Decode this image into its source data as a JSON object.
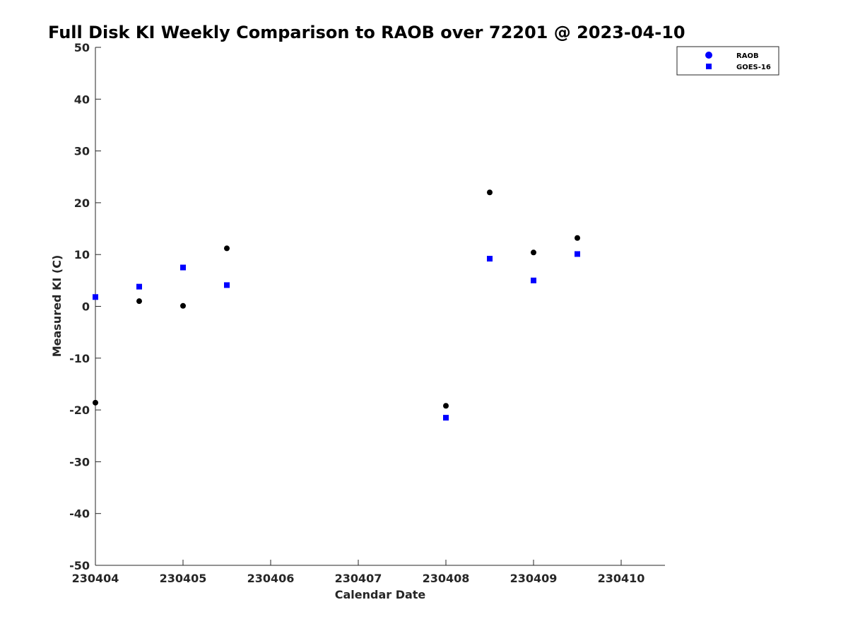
{
  "chart_data": {
    "type": "scatter",
    "title": "Full Disk KI Weekly Comparison to RAOB over 72201 @ 2023-04-10",
    "xlabel": "Calendar Date",
    "ylabel": "Measured KI (C)",
    "xlim": [
      "2023-04-04",
      "2023-04-10 12:00"
    ],
    "ylim": [
      -50,
      50
    ],
    "x_ticks": [
      {
        "value": "2023-04-04",
        "label": "230404"
      },
      {
        "value": "2023-04-05",
        "label": "230405"
      },
      {
        "value": "2023-04-06",
        "label": "230406"
      },
      {
        "value": "2023-04-07",
        "label": "230407"
      },
      {
        "value": "2023-04-08",
        "label": "230408"
      },
      {
        "value": "2023-04-09",
        "label": "230409"
      },
      {
        "value": "2023-04-10",
        "label": "230410"
      }
    ],
    "y_ticks": [
      {
        "value": 50,
        "label": "50"
      },
      {
        "value": 40,
        "label": "40"
      },
      {
        "value": 30,
        "label": "30"
      },
      {
        "value": 20,
        "label": "20"
      },
      {
        "value": 10,
        "label": "10"
      },
      {
        "value": 0,
        "label": "0"
      },
      {
        "value": -10,
        "label": "-10"
      },
      {
        "value": -20,
        "label": "-20"
      },
      {
        "value": -30,
        "label": "-30"
      },
      {
        "value": -40,
        "label": "-40"
      },
      {
        "value": -50,
        "label": "-50"
      }
    ],
    "grid": false,
    "legend_position": "top-right",
    "series": [
      {
        "name": "RAOB",
        "marker": "circle",
        "color": "#000000",
        "legend_color": "#0000ff",
        "points": [
          {
            "x": "2023-04-04 00:00",
            "y": -18.6
          },
          {
            "x": "2023-04-04 12:00",
            "y": 1.0
          },
          {
            "x": "2023-04-05 00:00",
            "y": 0.1
          },
          {
            "x": "2023-04-05 12:00",
            "y": 11.2
          },
          {
            "x": "2023-04-08 00:00",
            "y": -19.2
          },
          {
            "x": "2023-04-08 12:00",
            "y": 22.0
          },
          {
            "x": "2023-04-09 00:00",
            "y": 10.4
          },
          {
            "x": "2023-04-09 12:00",
            "y": 13.2
          }
        ]
      },
      {
        "name": "GOES-16",
        "marker": "square",
        "color": "#0000ff",
        "legend_color": "#0000ff",
        "points": [
          {
            "x": "2023-04-04 00:00",
            "y": 1.8
          },
          {
            "x": "2023-04-04 12:00",
            "y": 3.8
          },
          {
            "x": "2023-04-05 00:00",
            "y": 7.5
          },
          {
            "x": "2023-04-05 12:00",
            "y": 4.1
          },
          {
            "x": "2023-04-08 00:00",
            "y": -21.5
          },
          {
            "x": "2023-04-08 12:00",
            "y": 9.2
          },
          {
            "x": "2023-04-09 00:00",
            "y": 5.0
          },
          {
            "x": "2023-04-09 12:00",
            "y": 10.1
          }
        ]
      }
    ]
  }
}
